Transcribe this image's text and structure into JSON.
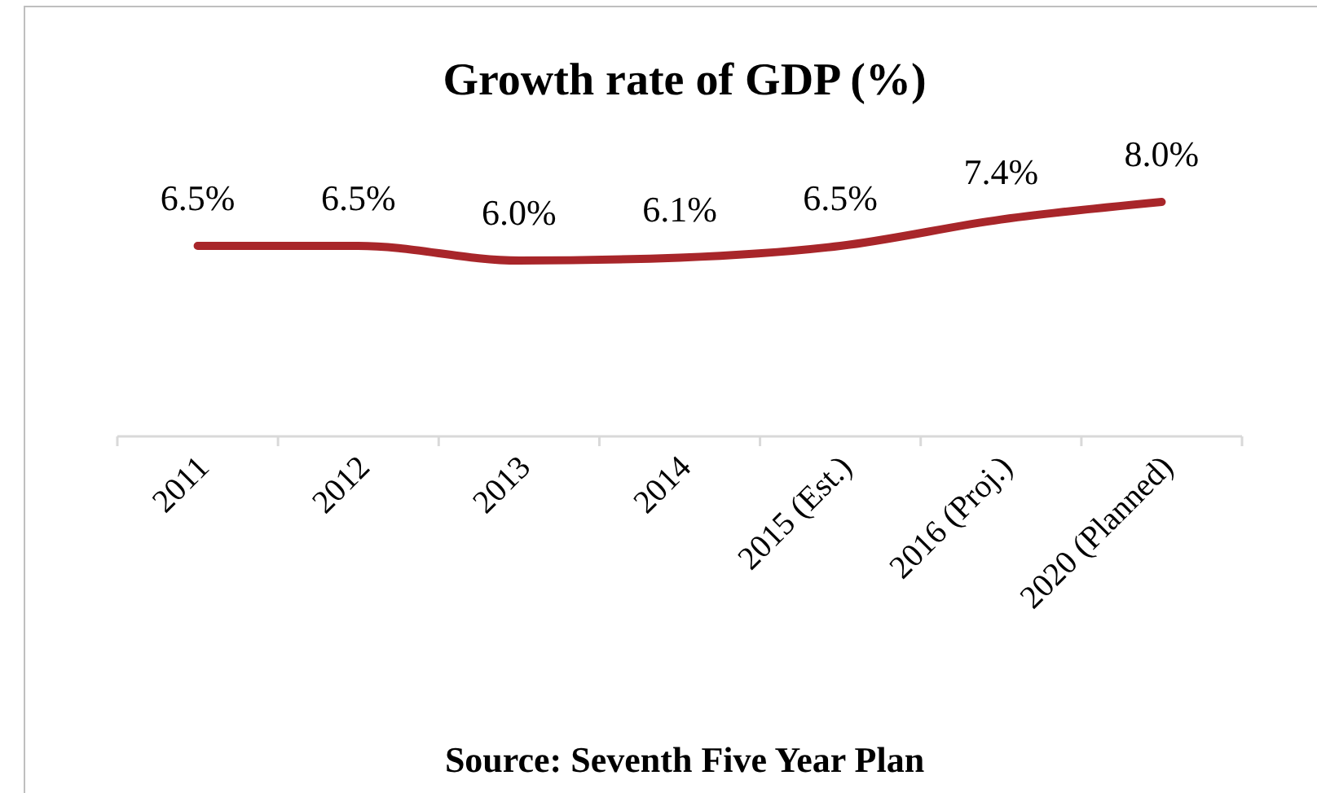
{
  "chart_data": {
    "type": "line",
    "title": "Growth rate of GDP (%)",
    "categories": [
      "2011",
      "2012",
      "2013",
      "2014",
      "2015 (Est.)",
      "2016 (Proj.)",
      "2020 (Planned)"
    ],
    "series": [
      {
        "color": "#a8262a",
        "values": [
          6.5,
          6.5,
          6.0,
          6.1,
          6.5,
          7.4,
          8.0
        ],
        "value_labels": [
          "6.5%",
          "6.5%",
          "6.0%",
          "6.1%",
          "6.5%",
          "7.4%",
          "8.0%"
        ]
      }
    ],
    "tick_labels": "x",
    "marker": "none",
    "line_style": "solid",
    "annotations": [
      "Source: Seventh Five Year Plan"
    ]
  }
}
